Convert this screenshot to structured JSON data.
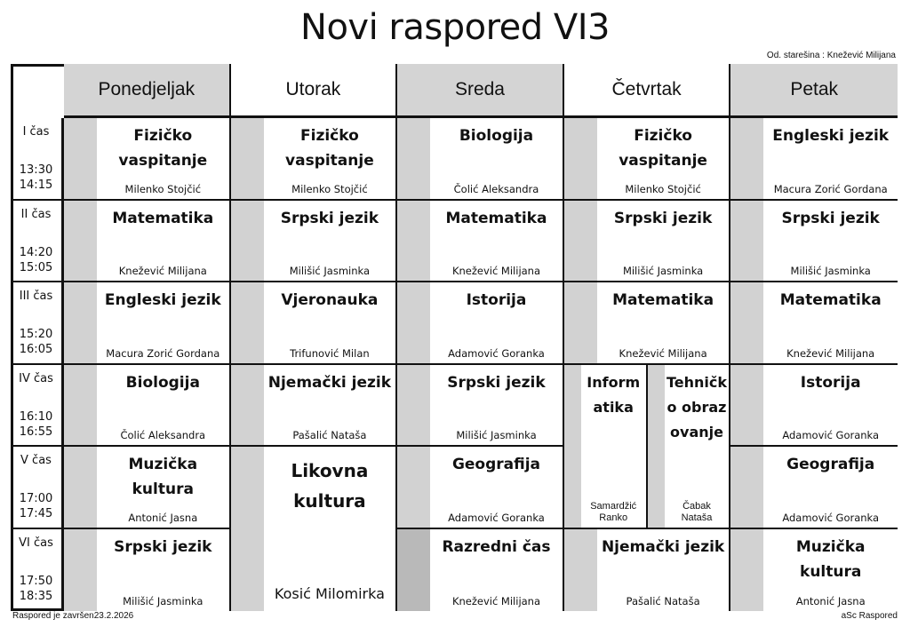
{
  "title": "Novi raspored VI3",
  "head_teacher": "Od. starešina : Knežević Milijana",
  "footer_left": "Raspored je završen23.2.2026",
  "footer_right": "aSc Raspored",
  "colors": {
    "header_grey": "#d4d4d4",
    "strip_light": "#d2d2d2",
    "strip_dark": "#b9b9b9",
    "border": "#111111"
  },
  "days": [
    {
      "label": "Ponedjeljak",
      "shaded": true
    },
    {
      "label": "Utorak",
      "shaded": false
    },
    {
      "label": "Sreda",
      "shaded": true
    },
    {
      "label": "Četvrtak",
      "shaded": false
    },
    {
      "label": "Petak",
      "shaded": true
    }
  ],
  "periods": [
    {
      "label": "I čas",
      "start": "13:30",
      "end": "14:15"
    },
    {
      "label": "II čas",
      "start": "14:20",
      "end": "15:05"
    },
    {
      "label": "III čas",
      "start": "15:20",
      "end": "16:05"
    },
    {
      "label": "IV čas",
      "start": "16:10",
      "end": "16:55"
    },
    {
      "label": "V čas",
      "start": "17:00",
      "end": "17:45"
    },
    {
      "label": "VI čas",
      "start": "17:50",
      "end": "18:35"
    }
  ],
  "lessons": [
    {
      "day": 0,
      "period": 0,
      "subject": "Fizičko vaspitanje",
      "teacher": "Milenko Stojčić"
    },
    {
      "day": 1,
      "period": 0,
      "subject": "Fizičko vaspitanje",
      "teacher": "Milenko Stojčić"
    },
    {
      "day": 2,
      "period": 0,
      "subject": "Biologija",
      "teacher": "Čolić Aleksandra"
    },
    {
      "day": 3,
      "period": 0,
      "subject": "Fizičko vaspitanje",
      "teacher": "Milenko Stojčić"
    },
    {
      "day": 4,
      "period": 0,
      "subject": "Engleski jezik",
      "teacher": "Macura Zorić Gordana"
    },
    {
      "day": 0,
      "period": 1,
      "subject": "Matematika",
      "teacher": "Knežević Milijana"
    },
    {
      "day": 1,
      "period": 1,
      "subject": "Srpski jezik",
      "teacher": "Milišić Jasminka"
    },
    {
      "day": 2,
      "period": 1,
      "subject": "Matematika",
      "teacher": "Knežević Milijana"
    },
    {
      "day": 3,
      "period": 1,
      "subject": "Srpski jezik",
      "teacher": "Milišić Jasminka"
    },
    {
      "day": 4,
      "period": 1,
      "subject": "Srpski jezik",
      "teacher": "Milišić Jasminka"
    },
    {
      "day": 0,
      "period": 2,
      "subject": "Engleski jezik",
      "teacher": "Macura Zorić Gordana"
    },
    {
      "day": 1,
      "period": 2,
      "subject": "Vjeronauka",
      "teacher": "Trifunović Milan"
    },
    {
      "day": 2,
      "period": 2,
      "subject": "Istorija",
      "teacher": "Adamović Goranka"
    },
    {
      "day": 3,
      "period": 2,
      "subject": "Matematika",
      "teacher": "Knežević Milijana"
    },
    {
      "day": 4,
      "period": 2,
      "subject": "Matematika",
      "teacher": "Knežević Milijana"
    },
    {
      "day": 0,
      "period": 3,
      "subject": "Biologija",
      "teacher": "Čolić Aleksandra"
    },
    {
      "day": 1,
      "period": 3,
      "subject": "Njemački jezik",
      "teacher": "Pašalić Nataša"
    },
    {
      "day": 2,
      "period": 3,
      "subject": "Srpski jezik",
      "teacher": "Milišić Jasminka"
    },
    {
      "day": 3,
      "period": 3,
      "span": 2,
      "half": 0,
      "subject": "Inform atika",
      "teacher": "Samardžić Ranko"
    },
    {
      "day": 3,
      "period": 3,
      "span": 2,
      "half": 1,
      "subject": "Tehničk o obraz ovanje",
      "teacher": "Čabak Nataša"
    },
    {
      "day": 4,
      "period": 3,
      "subject": "Istorija",
      "teacher": "Adamović Goranka"
    },
    {
      "day": 0,
      "period": 4,
      "subject": "Muzička kultura",
      "teacher": "Antonić Jasna"
    },
    {
      "day": 1,
      "period": 4,
      "span": 2,
      "subject": "Likovna kultura",
      "teacher": "Kosić Milomirka"
    },
    {
      "day": 2,
      "period": 4,
      "subject": "Geografija",
      "teacher": "Adamović Goranka"
    },
    {
      "day": 4,
      "period": 4,
      "subject": "Geografija",
      "teacher": "Adamović Goranka"
    },
    {
      "day": 0,
      "period": 5,
      "subject": "Srpski jezik",
      "teacher": "Milišić Jasminka"
    },
    {
      "day": 2,
      "period": 5,
      "subject": "Razredni čas",
      "teacher": "Knežević Milijana",
      "dark_strip": true
    },
    {
      "day": 3,
      "period": 5,
      "subject": "Njemački jezik",
      "teacher": "Pašalić Nataša"
    },
    {
      "day": 4,
      "period": 5,
      "subject": "Muzička kultura",
      "teacher": "Antonić Jasna"
    }
  ]
}
